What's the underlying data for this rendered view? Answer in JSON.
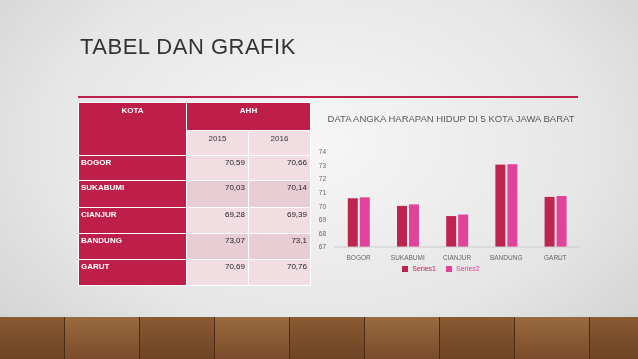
{
  "title": "TABEL DAN GRAFIK",
  "table": {
    "header": [
      "KOTA",
      "AHH"
    ],
    "subheader": [
      "2015",
      "2016"
    ],
    "rows": [
      [
        "BOGOR",
        "70,59",
        "70,66"
      ],
      [
        "SUKABUMI",
        "70,03",
        "70,14"
      ],
      [
        "CIANJUR",
        "69,28",
        "69,39"
      ],
      [
        "BANDUNG",
        "73,07",
        "73,1"
      ],
      [
        "GARUT",
        "70,69",
        "70,76"
      ]
    ]
  },
  "chart_data": {
    "type": "bar",
    "title": "DATA ANGKA HARAPAN HIDUP DI 5 KOTA JAWA BARAT",
    "categories": [
      "BOGOR",
      "SUKABUMI",
      "CIANJUR",
      "BANDUNG",
      "GARUT"
    ],
    "series": [
      {
        "name": "Series1",
        "color": "#be2450",
        "values": [
          70.59,
          70.03,
          69.28,
          73.07,
          70.69
        ]
      },
      {
        "name": "Series2",
        "color": "#e0449a",
        "values": [
          70.66,
          70.14,
          69.39,
          73.1,
          70.76
        ]
      }
    ],
    "ylim": [
      67,
      74
    ],
    "yticks": [
      67,
      68,
      69,
      70,
      71,
      72,
      73,
      74
    ],
    "grid": false,
    "legend": "bottom"
  }
}
